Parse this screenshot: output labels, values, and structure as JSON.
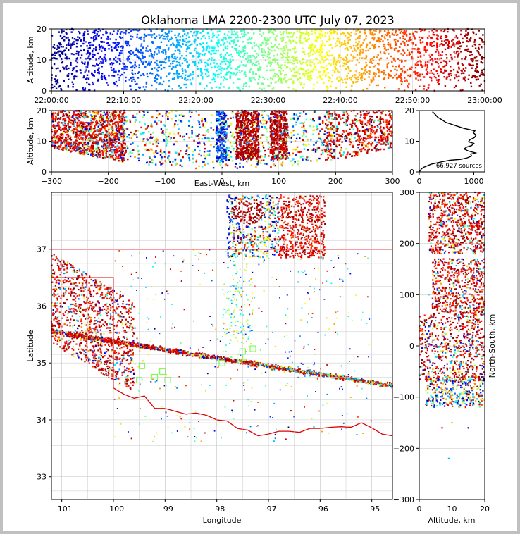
{
  "title": "Oklahoma LMA 2200-2300 UTC July 07, 2023",
  "chart_data": [
    {
      "panel": "time-altitude",
      "type": "scatter",
      "xlabel": "",
      "ylabel": "Altitude, km",
      "xticks": [
        "22:00:00",
        "22:10:00",
        "22:20:00",
        "22:30:00",
        "22:40:00",
        "22:50:00",
        "23:00:00"
      ],
      "xlim_min": [
        0,
        60
      ],
      "ylim": [
        0,
        20
      ],
      "yticks": [
        0,
        10,
        20
      ],
      "colormap": "jet (color by time)",
      "grid": true
    },
    {
      "panel": "east-west-altitude",
      "type": "scatter",
      "xlabel": "East-West, km",
      "ylabel": "Altitude, km",
      "xlim": [
        -300,
        300
      ],
      "xticks": [
        -300,
        -200,
        -100,
        0,
        100,
        200,
        300
      ],
      "ylim": [
        0,
        20
      ],
      "yticks": [
        0,
        10,
        20
      ],
      "grid": true
    },
    {
      "panel": "altitude-histogram",
      "type": "line",
      "annotation": "66,927 sources",
      "xlim": [
        0,
        1200
      ],
      "xticks": [
        0,
        1000
      ],
      "ylim": [
        0,
        20
      ],
      "yticks": [
        0,
        10,
        20
      ],
      "profile": [
        [
          0,
          0
        ],
        [
          40,
          1
        ],
        [
          80,
          1.5
        ],
        [
          220,
          2.5
        ],
        [
          420,
          3.3
        ],
        [
          560,
          3.8
        ],
        [
          760,
          4.1
        ],
        [
          880,
          4.6
        ],
        [
          960,
          5.2
        ],
        [
          940,
          5.8
        ],
        [
          1030,
          6.2
        ],
        [
          900,
          6.8
        ],
        [
          820,
          7.5
        ],
        [
          870,
          8.1
        ],
        [
          960,
          8.6
        ],
        [
          1000,
          9.3
        ],
        [
          900,
          9.8
        ],
        [
          930,
          10.5
        ],
        [
          1010,
          11.2
        ],
        [
          1040,
          12
        ],
        [
          990,
          12.8
        ],
        [
          1020,
          13.4
        ],
        [
          820,
          14.2
        ],
        [
          650,
          15.2
        ],
        [
          480,
          16.2
        ],
        [
          420,
          17
        ],
        [
          340,
          17.8
        ],
        [
          300,
          18.6
        ],
        [
          270,
          19.2
        ],
        [
          240,
          19.6
        ]
      ]
    },
    {
      "panel": "plan-view",
      "type": "scatter",
      "xlabel": "Longitude",
      "ylabel": "Latitude",
      "xlim": [
        -101.2,
        -94.6
      ],
      "ylim": [
        32.6,
        38
      ],
      "xticks": [
        -101,
        -100,
        -99,
        -98,
        -97,
        -96,
        -95
      ],
      "yticks": [
        33,
        34,
        35,
        36,
        37
      ],
      "grid": true
    },
    {
      "panel": "altitude-north-south",
      "type": "scatter",
      "xlabel": "Altitude, km",
      "ylabel": "North-South, km",
      "xlim": [
        0,
        20
      ],
      "xticks": [
        0,
        10,
        20
      ],
      "ylim": [
        -300,
        300
      ],
      "yticks": [
        -300,
        -200,
        -100,
        0,
        100,
        200,
        300
      ],
      "grid": true
    }
  ]
}
